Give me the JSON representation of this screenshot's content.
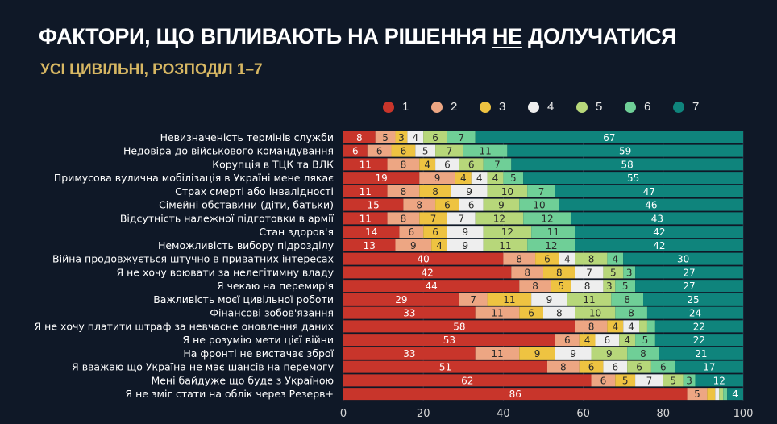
{
  "title_parts": {
    "before": "ФАКТОРИ, ЩО ВПЛИВАЮТЬ НА РІШЕННЯ ",
    "underlined": "НЕ",
    "after": " ДОЛУЧАТИСЯ"
  },
  "subtitle": "УСІ ЦИВІЛЬНІ, РОЗПОДІЛ 1–7",
  "chart_data": {
    "type": "bar",
    "orientation": "horizontal",
    "stacked": true,
    "title": "ФАКТОРИ, ЩО ВПЛИВАЮТЬ НА РІШЕННЯ НЕ ДОЛУЧАТИСЯ",
    "subtitle": "УСІ ЦИВІЛЬНІ, РОЗПОДІЛ 1–7",
    "xlabel": "",
    "ylabel": "",
    "xlim": [
      0,
      100
    ],
    "xticks": [
      0,
      20,
      40,
      60,
      80,
      100
    ],
    "grid": true,
    "legend_position": "top",
    "categories": [
      "Невизначеність термінів служби",
      "Недовіра до військового командування",
      "Корупція в ТЦК та ВЛК",
      "Примусова вулична мобілізація в Україні мене лякає",
      "Страх смерті або інвалідності",
      "Сімейні обставини (діти, батьки)",
      "Відсутність належної підготовки в армії",
      "Стан здоров'я",
      "Неможливість вибору підрозділу",
      "Війна продовжується штучно в приватних інтересах",
      "Я не хочу воювати за нелегітимну владу",
      "Я чекаю на перемир'я",
      "Важливість моєї цивільної роботи",
      "Фінансові зобов'язання",
      "Я не хочу платити штраф за невчасне оновлення даних",
      "Я не розумію мети цієї війни",
      "На фронті не вистачає зброї",
      "Я вважаю що Україна не має шансів на перемогу",
      "Мені байдуже що буде з Україною",
      "Я не зміг стати на облік через Резерв+"
    ],
    "series": [
      {
        "name": "1",
        "color": "#c8352b",
        "label_color": "#ffffff",
        "values": [
          8,
          6,
          11,
          19,
          11,
          15,
          11,
          14,
          13,
          40,
          42,
          44,
          29,
          33,
          58,
          53,
          33,
          51,
          62,
          86
        ]
      },
      {
        "name": "2",
        "color": "#eda683",
        "label_color": "#2a2a2a",
        "values": [
          5,
          6,
          8,
          9,
          8,
          8,
          8,
          6,
          9,
          8,
          8,
          8,
          7,
          11,
          8,
          6,
          11,
          8,
          6,
          5
        ]
      },
      {
        "name": "3",
        "color": "#eec341",
        "label_color": "#2a2a2a",
        "values": [
          3,
          6,
          4,
          4,
          8,
          6,
          7,
          6,
          4,
          6,
          8,
          5,
          11,
          6,
          4,
          4,
          9,
          6,
          5,
          2
        ]
      },
      {
        "name": "4",
        "color": "#eeeeee",
        "label_color": "#2a2a2a",
        "values": [
          4,
          5,
          6,
          4,
          9,
          6,
          7,
          9,
          9,
          4,
          7,
          8,
          9,
          8,
          4,
          6,
          9,
          6,
          7,
          1
        ]
      },
      {
        "name": "5",
        "color": "#b7d77a",
        "label_color": "#2a2a2a",
        "values": [
          6,
          7,
          6,
          4,
          10,
          9,
          12,
          12,
          11,
          8,
          5,
          3,
          11,
          10,
          2,
          4,
          9,
          6,
          5,
          1
        ]
      },
      {
        "name": "6",
        "color": "#6fcf97",
        "label_color": "#2a2a2a",
        "values": [
          7,
          11,
          7,
          5,
          7,
          10,
          12,
          11,
          12,
          4,
          3,
          5,
          8,
          8,
          2,
          5,
          8,
          6,
          3,
          1
        ]
      },
      {
        "name": "7",
        "color": "#0f847c",
        "label_color": "#ffffff",
        "values": [
          67,
          59,
          58,
          55,
          47,
          46,
          43,
          42,
          42,
          30,
          27,
          27,
          25,
          24,
          22,
          22,
          21,
          17,
          12,
          4
        ]
      }
    ]
  }
}
